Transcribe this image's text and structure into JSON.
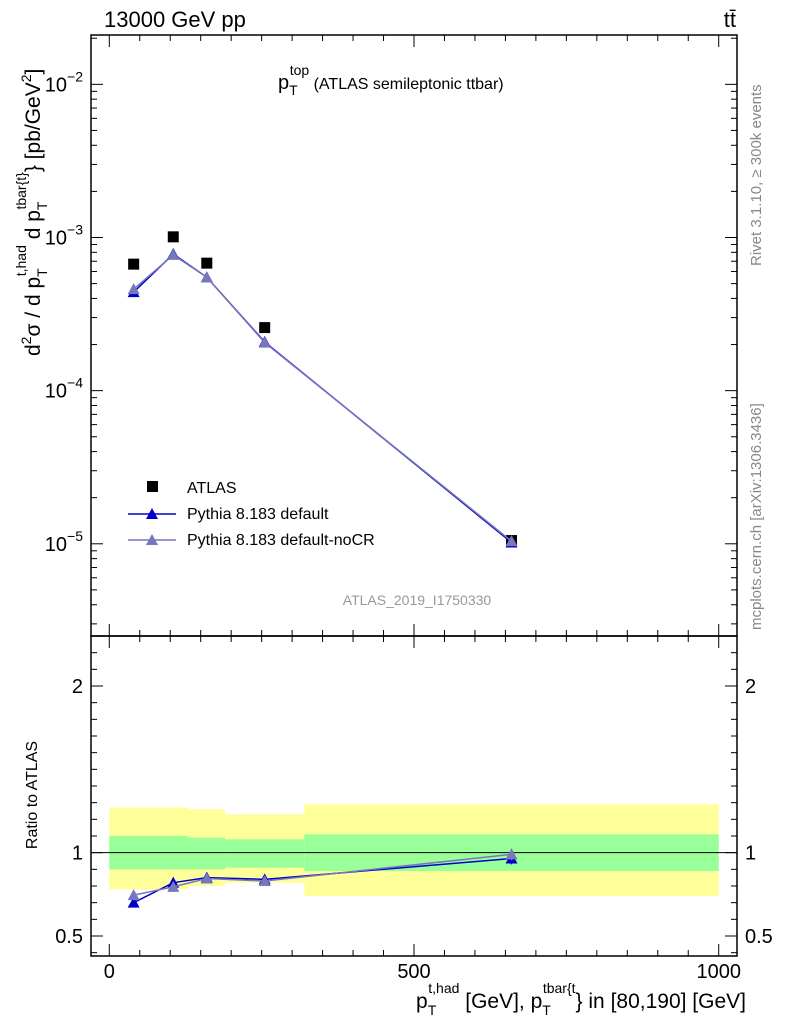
{
  "header": {
    "left": "13000 GeV pp",
    "right": "tt̄"
  },
  "side_labels": {
    "rivet": "Rivet 3.1.10, ≥ 300k events",
    "mcplots": "mcplots.cern.ch [arXiv:1306.3436]"
  },
  "watermark": "ATLAS_2019_I1750330",
  "colors": {
    "data": "#000000",
    "default": "#0000cc",
    "nocr": "#7777bb",
    "band_inner": "#99ff99",
    "band_outer": "#ffff99"
  },
  "chart_data": [
    {
      "type": "line",
      "scale": "log",
      "title": {
        "main": "p",
        "sub": "T",
        "sup": "top",
        "rest": " (ATLAS semileptonic ttbar)"
      },
      "ylabel": "d²σ / d p_T^{t,had} d p_T^{tbar{t}} [pb/GeV²]",
      "ylabel_parts": {
        "d2sigma_a": "d",
        "d2sigma_sup": "2",
        "d2sigma_b": "σ / d p",
        "sub1": "T",
        "sup1": "t,had",
        "mid": " d p",
        "sub2": "T",
        "sup2": "tbar{t}",
        "units": "} [pb/GeV",
        "units_sup": "2",
        "units_end": "]"
      },
      "xlim": [
        -30,
        1030
      ],
      "ylim": [
        2.5e-06,
        0.021
      ],
      "y_ticks": [
        {
          "value": 0.01,
          "base": "10",
          "exp": "−2"
        },
        {
          "value": 0.001,
          "base": "10",
          "exp": "−3"
        },
        {
          "value": 0.0001,
          "base": "10",
          "exp": "−4"
        },
        {
          "value": 1e-05,
          "base": "10",
          "exp": "−5"
        }
      ],
      "legend": {
        "position": "lower-left",
        "entries": [
          "ATLAS",
          "Pythia 8.183 default",
          "Pythia 8.183 default-noCR"
        ]
      },
      "series": [
        {
          "name": "ATLAS",
          "style": "square",
          "x": [
            40,
            105,
            160,
            255,
            660
          ],
          "y": [
            0.00067,
            0.00101,
            0.00068,
            0.000258,
            1.05e-05
          ]
        },
        {
          "name": "Pythia 8.183 default",
          "style": "triangle-line",
          "x": [
            40,
            105,
            160,
            255,
            660
          ],
          "y": [
            0.00044,
            0.00078,
            0.00055,
            0.000208,
            1.02e-05
          ]
        },
        {
          "name": "Pythia 8.183 default-noCR",
          "style": "triangle-line",
          "x": [
            40,
            105,
            160,
            255,
            660
          ],
          "y": [
            0.00046,
            0.00077,
            0.00055,
            0.000206,
            1.04e-05
          ]
        }
      ]
    },
    {
      "type": "line",
      "scale": "linear",
      "ylabel": "Ratio to ATLAS",
      "xlabel_parts": {
        "p1": "p",
        "sub1": "T",
        "sup1": "t,had",
        "mid": " [GeV], p",
        "sub2": "T",
        "sup2": "tbar{t",
        "end": "} in [80,190] [GeV]"
      },
      "xlim": [
        -30,
        1030
      ],
      "ylim": [
        0.38,
        2.3
      ],
      "x_ticks": [
        0,
        500,
        1000
      ],
      "x_tick_labels": [
        "0",
        "500",
        "1000"
      ],
      "y_ticks": [
        0.5,
        1,
        2
      ],
      "y_tick_labels": [
        "0.5",
        "1",
        "2"
      ],
      "bands": [
        {
          "x0": 0,
          "x1": 130,
          "inner": [
            0.9,
            1.1
          ],
          "outer": [
            0.78,
            1.27
          ]
        },
        {
          "x0": 130,
          "x1": 190,
          "inner": [
            0.9,
            1.09
          ],
          "outer": [
            0.8,
            1.26
          ]
        },
        {
          "x0": 190,
          "x1": 320,
          "inner": [
            0.91,
            1.08
          ],
          "outer": [
            0.82,
            1.23
          ]
        },
        {
          "x0": 320,
          "x1": 1000,
          "inner": [
            0.89,
            1.11
          ],
          "outer": [
            0.74,
            1.29
          ]
        }
      ],
      "series": [
        {
          "name": "Pythia 8.183 default",
          "x": [
            40,
            105,
            160,
            255,
            660
          ],
          "y": [
            0.7,
            0.82,
            0.85,
            0.84,
            0.965
          ],
          "err": [
            0,
            0,
            0,
            0,
            0.035
          ]
        },
        {
          "name": "Pythia 8.183 default-noCR",
          "x": [
            40,
            105,
            160,
            255,
            660
          ],
          "y": [
            0.745,
            0.795,
            0.845,
            0.83,
            0.99
          ],
          "err": [
            0,
            0,
            0,
            0,
            0.035
          ]
        }
      ]
    }
  ]
}
